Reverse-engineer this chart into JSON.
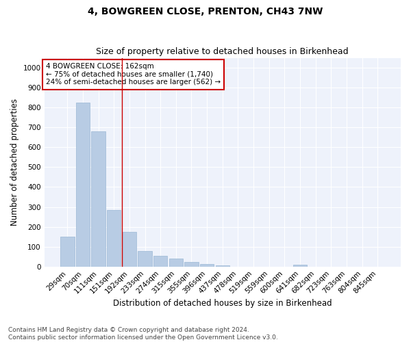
{
  "title1": "4, BOWGREEN CLOSE, PRENTON, CH43 7NW",
  "title2": "Size of property relative to detached houses in Birkenhead",
  "xlabel": "Distribution of detached houses by size in Birkenhead",
  "ylabel": "Number of detached properties",
  "categories": [
    "29sqm",
    "70sqm",
    "111sqm",
    "151sqm",
    "192sqm",
    "233sqm",
    "274sqm",
    "315sqm",
    "355sqm",
    "396sqm",
    "437sqm",
    "478sqm",
    "519sqm",
    "559sqm",
    "600sqm",
    "641sqm",
    "682sqm",
    "723sqm",
    "763sqm",
    "804sqm",
    "845sqm"
  ],
  "values": [
    150,
    825,
    680,
    285,
    175,
    78,
    53,
    40,
    22,
    12,
    5,
    0,
    0,
    0,
    0,
    10,
    0,
    0,
    0,
    0,
    0
  ],
  "bar_color": "#b8cce4",
  "bar_edge_color": "#9ab8d4",
  "vline_color": "#cc0000",
  "vline_pos": 3.5,
  "annotation_text": "4 BOWGREEN CLOSE: 162sqm\n← 75% of detached houses are smaller (1,740)\n24% of semi-detached houses are larger (562) →",
  "annotation_box_facecolor": "#ffffff",
  "annotation_box_edgecolor": "#cc0000",
  "ylim": [
    0,
    1050
  ],
  "yticks": [
    0,
    100,
    200,
    300,
    400,
    500,
    600,
    700,
    800,
    900,
    1000
  ],
  "bg_color": "#eef2fb",
  "grid_color": "#ffffff",
  "footer": "Contains HM Land Registry data © Crown copyright and database right 2024.\nContains public sector information licensed under the Open Government Licence v3.0.",
  "title1_fontsize": 10,
  "title2_fontsize": 9,
  "tick_fontsize": 7.5,
  "ylabel_fontsize": 8.5,
  "xlabel_fontsize": 8.5,
  "annotation_fontsize": 7.5,
  "footer_fontsize": 6.5
}
